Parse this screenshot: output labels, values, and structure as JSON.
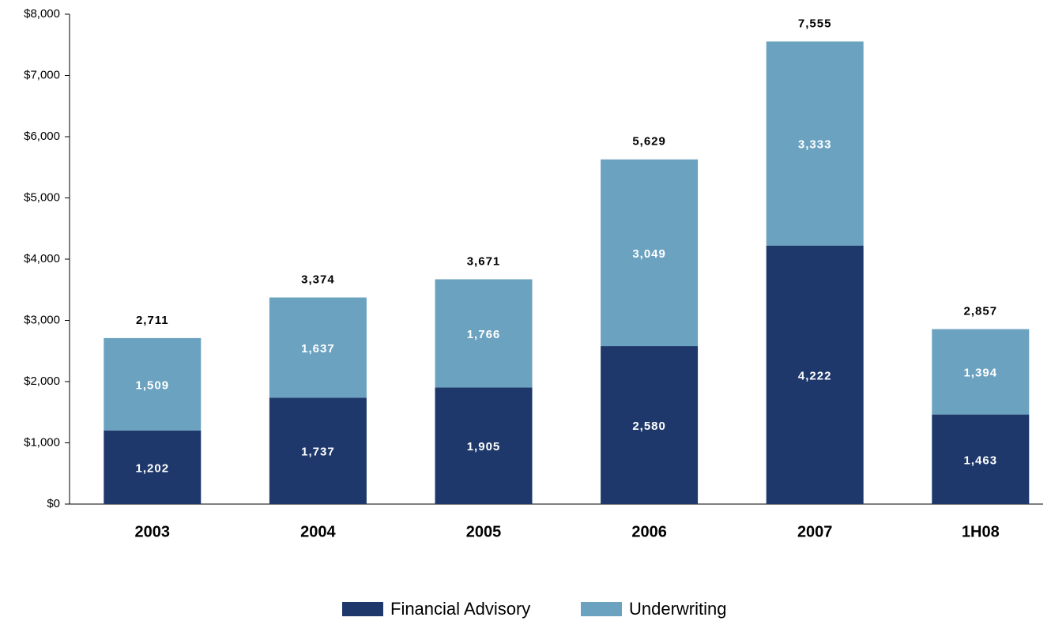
{
  "chart_data": {
    "type": "stacked_bar",
    "categories": [
      "2003",
      "2004",
      "2005",
      "2006",
      "2007",
      "1H08"
    ],
    "series": [
      {
        "name": "Financial Advisory",
        "color": "#1f386b",
        "values": [
          1202,
          1737,
          1905,
          2580,
          4222,
          1463
        ],
        "value_labels": [
          "1,202",
          "1,737",
          "1,905",
          "2,580",
          "4,222",
          "1,463"
        ]
      },
      {
        "name": "Underwriting",
        "color": "#6aa2c0",
        "values": [
          1509,
          1637,
          1766,
          3049,
          3333,
          1394
        ],
        "value_labels": [
          "1,509",
          "1,637",
          "1,766",
          "3,049",
          "3,333",
          "1,394"
        ]
      }
    ],
    "totals": [
      2711,
      3374,
      3671,
      5629,
      7555,
      2857
    ],
    "total_labels": [
      "2,711",
      "3,374",
      "3,671",
      "5,629",
      "7,555",
      "2,857"
    ],
    "ylim": [
      0,
      8000
    ],
    "yticks": [
      {
        "value": 0,
        "label": "$0"
      },
      {
        "value": 1000,
        "label": "$1,000"
      },
      {
        "value": 2000,
        "label": "$2,000"
      },
      {
        "value": 3000,
        "label": "$3,000"
      },
      {
        "value": 4000,
        "label": "$4,000"
      },
      {
        "value": 5000,
        "label": "$5,000"
      },
      {
        "value": 6000,
        "label": "$6,000"
      },
      {
        "value": 7000,
        "label": "$7,000"
      },
      {
        "value": 8000,
        "label": "$8,000"
      }
    ],
    "grid": false,
    "legend": "bottom"
  }
}
